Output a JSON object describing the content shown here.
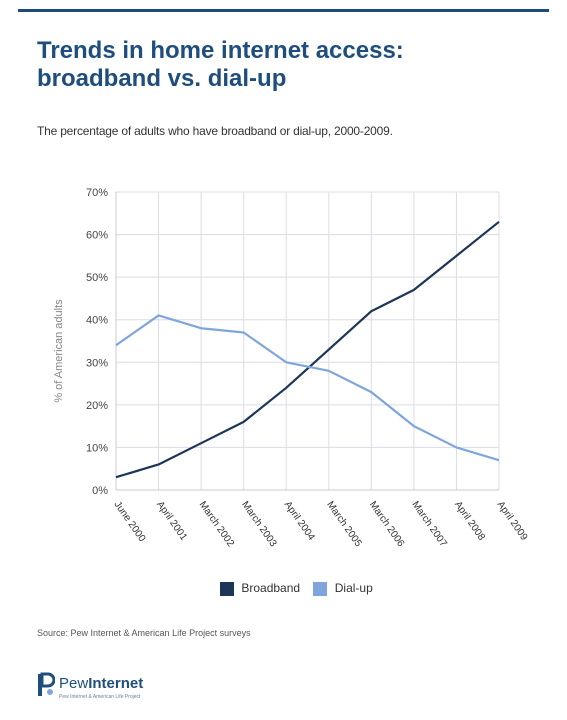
{
  "title_line1": "Trends in home internet access:",
  "title_line2": "broadband vs. dial-up",
  "subtitle": "The percentage of adults who have broadband or dial-up, 2000-2009.",
  "source": "Source: Pew Internet & American Life Project surveys",
  "logo": {
    "prefix": "Pew",
    "name": "Internet",
    "tagline": "Pew Internet & American Life Project",
    "icon": "pew-logo-icon"
  },
  "colors": {
    "broadband": "#1d3557",
    "dialup": "#7fa6dc",
    "grid": "#dcdce6",
    "title": "#1f4e7d"
  },
  "chart_data": {
    "type": "line",
    "title": "Trends in home internet access: broadband vs. dial-up",
    "xlabel": "",
    "ylabel": "% of American adults",
    "categories": [
      "June 2000",
      "April 2001",
      "March 2002",
      "March 2003",
      "April 2004",
      "March 2005",
      "March 2006",
      "March 2007",
      "April 2008",
      "April 2009"
    ],
    "series": [
      {
        "name": "Broadband",
        "values": [
          3,
          6,
          11,
          16,
          24,
          33,
          42,
          47,
          55,
          63
        ]
      },
      {
        "name": "Dial-up",
        "values": [
          34,
          41,
          38,
          37,
          30,
          28,
          23,
          15,
          10,
          7
        ]
      }
    ],
    "ylim": [
      0,
      70
    ],
    "yticks": [
      0,
      10,
      20,
      30,
      40,
      50,
      60,
      70
    ],
    "ytick_labels": [
      "0%",
      "10%",
      "20%",
      "30%",
      "40%",
      "50%",
      "60%",
      "70%"
    ],
    "grid": true,
    "legend": "bottom-center"
  }
}
